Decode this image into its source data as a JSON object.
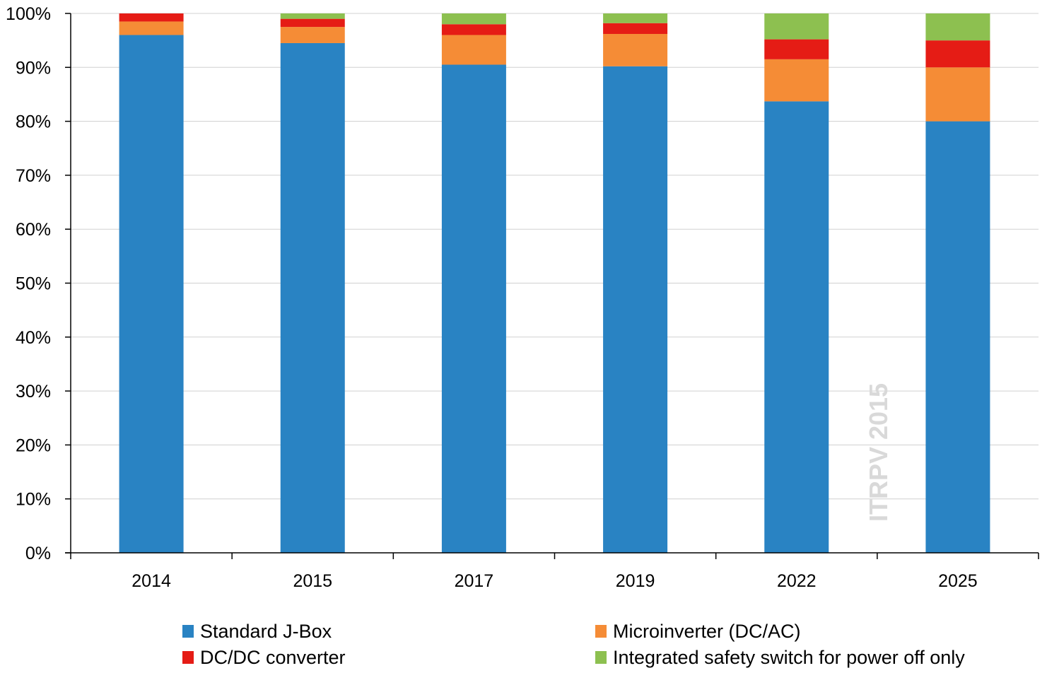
{
  "chart_data": {
    "type": "bar",
    "stacked": true,
    "categories": [
      "2014",
      "2015",
      "2017",
      "2019",
      "2022",
      "2025"
    ],
    "series": [
      {
        "name": "Standard J-Box",
        "color": "#2983c3",
        "values": [
          96,
          94.5,
          90.5,
          90.2,
          83.7,
          80
        ]
      },
      {
        "name": "Microinverter (DC/AC)",
        "color": "#f58c36",
        "values": [
          2.5,
          3,
          5.5,
          6,
          7.8,
          10
        ]
      },
      {
        "name": "DC/DC converter",
        "color": "#e51c15",
        "values": [
          1.5,
          1.5,
          2,
          2,
          3.7,
          5
        ]
      },
      {
        "name": "Integrated safety switch for power off only",
        "color": "#8dc050",
        "values": [
          0,
          1,
          2,
          1.8,
          4.8,
          5
        ]
      }
    ],
    "ylim": [
      0,
      100
    ],
    "yticks": [
      "0%",
      "10%",
      "20%",
      "30%",
      "40%",
      "50%",
      "60%",
      "70%",
      "80%",
      "90%",
      "100%"
    ],
    "grid": true,
    "legend": "bottom",
    "watermark": "ITRPV 2015"
  }
}
